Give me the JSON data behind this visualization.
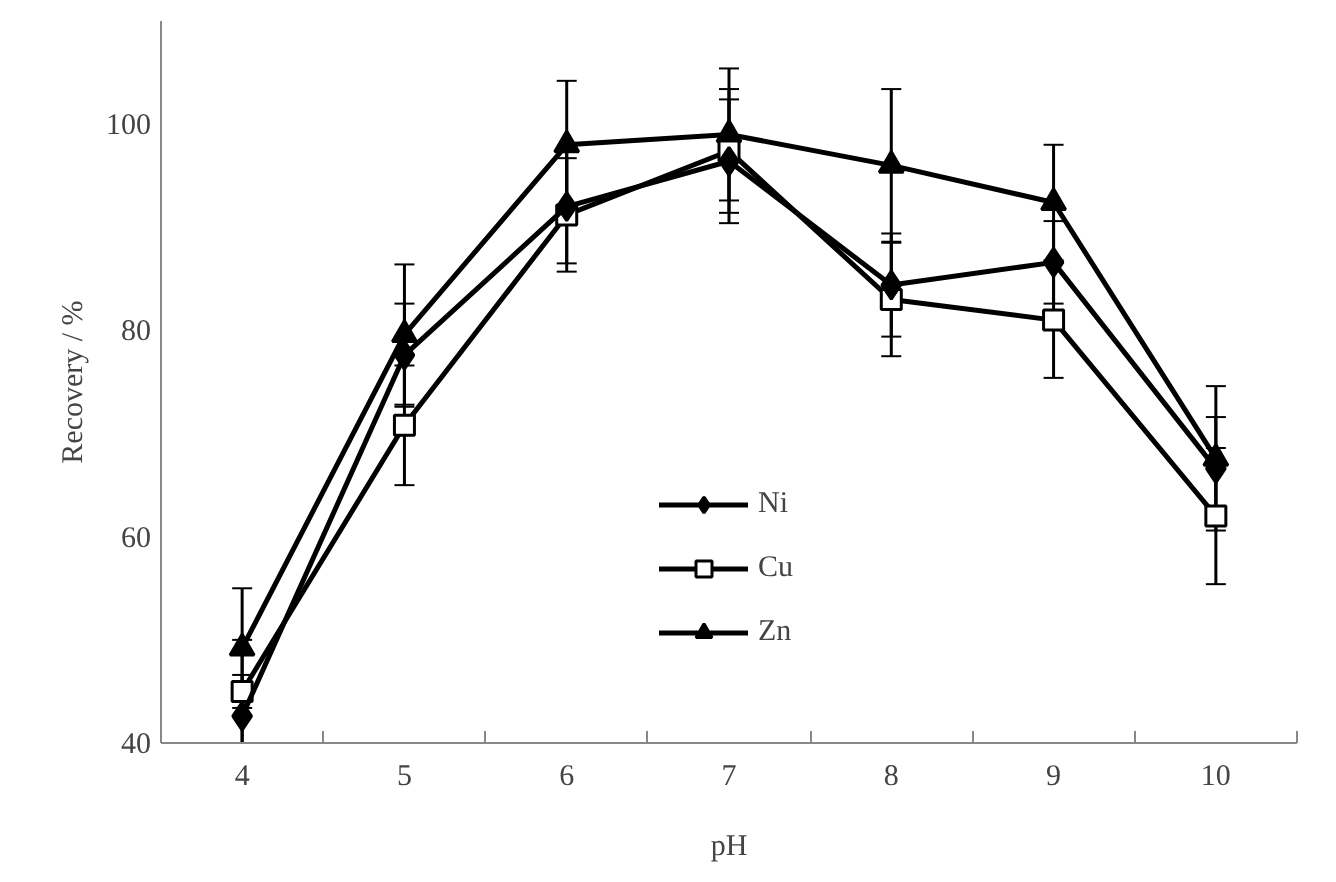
{
  "chart_data": {
    "type": "line",
    "xlabel": "pH",
    "ylabel": "Recovery / %",
    "categories": [
      "4",
      "5",
      "6",
      "7",
      "8",
      "9",
      "10"
    ],
    "ylim": [
      40,
      110
    ],
    "yticks": [
      40,
      60,
      80,
      100
    ],
    "grid": false,
    "legend": "bottom",
    "line_style": "solid",
    "series": [
      {
        "name": "Ni",
        "color": "#000000",
        "marker": "diamond",
        "values": [
          42.6,
          77.6,
          92,
          96.4,
          84.4,
          86.6,
          66.6
        ],
        "errors": [
          4,
          5,
          5.5,
          6,
          5,
          4,
          5
        ]
      },
      {
        "name": "Cu",
        "color": "#000000",
        "marker": "square",
        "values": [
          45,
          70.8,
          91.2,
          97.4,
          83,
          81,
          62
        ],
        "errors": [
          5,
          5.8,
          5.5,
          6,
          5.5,
          5.6,
          6.6
        ]
      },
      {
        "name": "Zn",
        "color": "#000000",
        "marker": "triangle",
        "values": [
          49.2,
          79.6,
          98,
          99,
          96,
          92.4,
          67.6
        ],
        "errors": [
          5.8,
          6.8,
          6.2,
          6.4,
          7.4,
          5.6,
          7
        ]
      }
    ]
  }
}
